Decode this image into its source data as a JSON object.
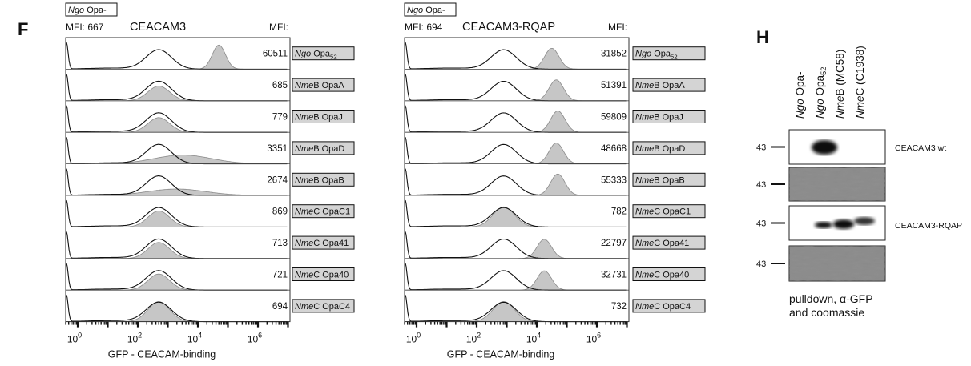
{
  "panel_f": {
    "letter": "F",
    "histograms": [
      {
        "header": {
          "italic": "Ngo",
          "text": " Opa-"
        },
        "control_mfi": "MFI: 667",
        "title": "CEACAM3",
        "mfi_label": "MFI:",
        "rows": [
          {
            "mfi": 60511,
            "label": {
              "italic": "Ngo",
              "text": " Opa",
              "sub": "52"
            }
          },
          {
            "mfi": 685,
            "label": {
              "italic": "Nme",
              "text": "B OpaA"
            }
          },
          {
            "mfi": 779,
            "label": {
              "italic": "Nme",
              "text": "B OpaJ"
            }
          },
          {
            "mfi": 3351,
            "label": {
              "italic": "Nme",
              "text": "B OpaD"
            }
          },
          {
            "mfi": 2674,
            "label": {
              "italic": "Nme",
              "text": "B OpaB"
            }
          },
          {
            "mfi": 869,
            "label": {
              "italic": "Nme",
              "text": "C OpaC1"
            }
          },
          {
            "mfi": 713,
            "label": {
              "italic": "Nme",
              "text": "C Opa41"
            }
          },
          {
            "mfi": 721,
            "label": {
              "italic": "Nme",
              "text": "C Opa40"
            }
          },
          {
            "mfi": 694,
            "label": {
              "italic": "Nme",
              "text": "C OpaC4"
            }
          }
        ],
        "x_ticks": [
          {
            "base": "10",
            "exp": "0"
          },
          {
            "base": "10",
            "exp": "2"
          },
          {
            "base": "10",
            "exp": "4"
          },
          {
            "base": "10",
            "exp": "6"
          }
        ],
        "x_label": "GFP - CEACAM-binding"
      },
      {
        "header": {
          "italic": "Ngo",
          "text": " Opa-"
        },
        "control_mfi": "MFI: 694",
        "title": "CEACAM3-RQAP",
        "mfi_label": "MFI:",
        "rows": [
          {
            "mfi": 31852,
            "label": {
              "italic": "Ngo",
              "text": " Opa",
              "sub": "52"
            }
          },
          {
            "mfi": 51391,
            "label": {
              "italic": "Nme",
              "text": "B OpaA"
            }
          },
          {
            "mfi": 59809,
            "label": {
              "italic": "Nme",
              "text": "B OpaJ"
            }
          },
          {
            "mfi": 48668,
            "label": {
              "italic": "Nme",
              "text": "B OpaD"
            }
          },
          {
            "mfi": 55333,
            "label": {
              "italic": "Nme",
              "text": "B OpaB"
            }
          },
          {
            "mfi": 782,
            "label": {
              "italic": "Nme",
              "text": "C OpaC1"
            }
          },
          {
            "mfi": 22797,
            "label": {
              "italic": "Nme",
              "text": "C Opa41"
            }
          },
          {
            "mfi": 32731,
            "label": {
              "italic": "Nme",
              "text": "C Opa40"
            }
          },
          {
            "mfi": 732,
            "label": {
              "italic": "Nme",
              "text": "C OpaC4"
            }
          }
        ],
        "x_ticks": [
          {
            "base": "10",
            "exp": "0"
          },
          {
            "base": "10",
            "exp": "2"
          },
          {
            "base": "10",
            "exp": "4"
          },
          {
            "base": "10",
            "exp": "6"
          }
        ],
        "x_label": "GFP - CEACAM-binding"
      }
    ]
  },
  "panel_h": {
    "letter": "H",
    "lanes": [
      {
        "italic": "Ngo",
        "text": " Opa-"
      },
      {
        "italic": "Ngo",
        "text": " Opa",
        "sub": "52"
      },
      {
        "italic": "Nme",
        "text": "B (MC58)"
      },
      {
        "italic": "Nme",
        "text": "C (C1938)"
      }
    ],
    "markers": [
      "43",
      "43",
      "43",
      "43"
    ],
    "blot_labels": [
      "CEACAM3 wt",
      "CEACAM3-RQAP"
    ],
    "caption": [
      "pulldown, α-GFP",
      "and coomassie"
    ]
  }
}
